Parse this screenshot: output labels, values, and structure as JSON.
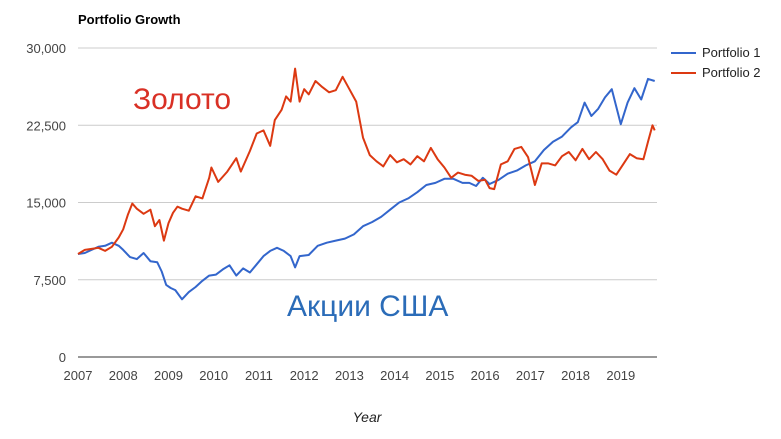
{
  "chart_data": {
    "type": "line",
    "title": "Portfolio Growth",
    "xlabel": "Year",
    "ylabel": "",
    "xlim": [
      2007,
      2019.8
    ],
    "ylim": [
      0,
      30000
    ],
    "xticks": [
      "2007",
      "2008",
      "2009",
      "2010",
      "2011",
      "2012",
      "2013",
      "2014",
      "2015",
      "2016",
      "2017",
      "2018",
      "2019"
    ],
    "yticks": [
      "0",
      "7,500",
      "15,000",
      "22,500",
      "30,000"
    ],
    "grid": true,
    "legend": "right",
    "annotations": [
      {
        "text": "Золото",
        "color": "#d93025"
      },
      {
        "text": "Акции США",
        "color": "#2b6cb8"
      }
    ],
    "series": [
      {
        "name": "Portfolio 1",
        "color": "#3366cc",
        "x": [
          2007.0,
          2007.15,
          2007.3,
          2007.45,
          2007.6,
          2007.75,
          2007.9,
          2008.0,
          2008.15,
          2008.3,
          2008.45,
          2008.6,
          2008.75,
          2008.85,
          2008.95,
          2009.05,
          2009.15,
          2009.3,
          2009.45,
          2009.6,
          2009.75,
          2009.9,
          2010.05,
          2010.2,
          2010.35,
          2010.5,
          2010.65,
          2010.8,
          2010.95,
          2011.1,
          2011.25,
          2011.4,
          2011.55,
          2011.7,
          2011.8,
          2011.9,
          2012.1,
          2012.3,
          2012.5,
          2012.7,
          2012.9,
          2013.1,
          2013.3,
          2013.5,
          2013.7,
          2013.9,
          2014.1,
          2014.3,
          2014.5,
          2014.7,
          2014.9,
          2015.1,
          2015.3,
          2015.5,
          2015.65,
          2015.8,
          2015.95,
          2016.1,
          2016.3,
          2016.5,
          2016.7,
          2016.9,
          2017.1,
          2017.3,
          2017.5,
          2017.7,
          2017.9,
          2018.05,
          2018.2,
          2018.35,
          2018.5,
          2018.65,
          2018.8,
          2018.9,
          2019.0,
          2019.15,
          2019.3,
          2019.45,
          2019.6,
          2019.75
        ],
        "y": [
          10000,
          10100,
          10400,
          10700,
          10800,
          11100,
          10800,
          10400,
          9700,
          9500,
          10100,
          9300,
          9200,
          8300,
          7000,
          6700,
          6500,
          5600,
          6300,
          6800,
          7400,
          7900,
          8000,
          8500,
          8900,
          7900,
          8600,
          8200,
          9000,
          9800,
          10300,
          10600,
          10300,
          9800,
          8700,
          9800,
          9900,
          10800,
          11100,
          11300,
          11500,
          11900,
          12700,
          13100,
          13600,
          14300,
          15000,
          15400,
          16000,
          16700,
          16900,
          17300,
          17300,
          16900,
          16900,
          16600,
          17400,
          16800,
          17200,
          17800,
          18100,
          18600,
          19000,
          20100,
          20900,
          21400,
          22300,
          22800,
          24700,
          23400,
          24100,
          25200,
          26000,
          24300,
          22600,
          24700,
          26100,
          25000,
          27000,
          26800
        ]
      },
      {
        "name": "Portfolio 2",
        "color": "#dc3912",
        "x": [
          2007.0,
          2007.15,
          2007.3,
          2007.45,
          2007.6,
          2007.75,
          2007.9,
          2008.0,
          2008.1,
          2008.2,
          2008.3,
          2008.45,
          2008.6,
          2008.7,
          2008.8,
          2008.9,
          2009.0,
          2009.1,
          2009.2,
          2009.3,
          2009.45,
          2009.6,
          2009.75,
          2009.9,
          2009.95,
          2010.1,
          2010.3,
          2010.5,
          2010.6,
          2010.8,
          2010.95,
          2011.1,
          2011.25,
          2011.35,
          2011.5,
          2011.6,
          2011.7,
          2011.8,
          2011.9,
          2012.0,
          2012.1,
          2012.25,
          2012.4,
          2012.55,
          2012.7,
          2012.85,
          2013.0,
          2013.15,
          2013.3,
          2013.45,
          2013.6,
          2013.75,
          2013.9,
          2014.05,
          2014.2,
          2014.35,
          2014.5,
          2014.65,
          2014.8,
          2014.95,
          2015.1,
          2015.25,
          2015.4,
          2015.55,
          2015.7,
          2015.85,
          2016.0,
          2016.1,
          2016.2,
          2016.35,
          2016.5,
          2016.65,
          2016.8,
          2016.95,
          2017.1,
          2017.25,
          2017.4,
          2017.55,
          2017.7,
          2017.85,
          2018.0,
          2018.15,
          2018.3,
          2018.45,
          2018.6,
          2018.75,
          2018.9,
          2019.05,
          2019.2,
          2019.35,
          2019.5,
          2019.6,
          2019.7,
          2019.75
        ],
        "y": [
          10000,
          10400,
          10500,
          10600,
          10300,
          10700,
          11600,
          12400,
          13800,
          14900,
          14400,
          13900,
          14300,
          12700,
          13300,
          11300,
          13000,
          14000,
          14600,
          14400,
          14200,
          15600,
          15400,
          17400,
          18400,
          17000,
          18000,
          19300,
          18000,
          20000,
          21700,
          22000,
          20500,
          23000,
          24000,
          25300,
          24800,
          28000,
          24800,
          26000,
          25500,
          26800,
          26200,
          25700,
          25900,
          27200,
          26000,
          24800,
          21300,
          19600,
          19000,
          18500,
          19600,
          18900,
          19200,
          18700,
          19500,
          19000,
          20300,
          19200,
          18400,
          17400,
          17900,
          17700,
          17600,
          17100,
          17200,
          16400,
          16300,
          18700,
          19000,
          20200,
          20400,
          19400,
          16700,
          18800,
          18800,
          18600,
          19500,
          19900,
          19100,
          20200,
          19200,
          19900,
          19200,
          18100,
          17700,
          18700,
          19700,
          19300,
          19200,
          20900,
          22500,
          22000
        ]
      }
    ]
  }
}
